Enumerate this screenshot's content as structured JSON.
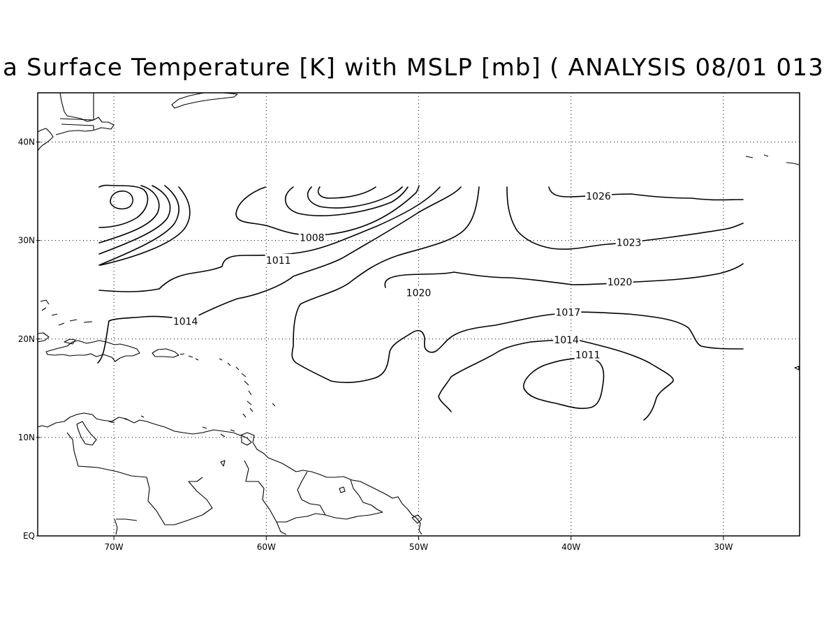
{
  "title": "a Surface Temperature [K] with MSLP [mb] ( ANALYSIS 08/01 013",
  "map": {
    "lon_range": [
      -75,
      -25
    ],
    "lat_range": [
      0,
      45
    ],
    "lat_ticks": [
      {
        "value": 0,
        "label": "EQ"
      },
      {
        "value": 10,
        "label": "10N"
      },
      {
        "value": 20,
        "label": "20N"
      },
      {
        "value": 30,
        "label": "30N"
      },
      {
        "value": 40,
        "label": "40N"
      }
    ],
    "lon_ticks": [
      {
        "value": -70,
        "label": "70W"
      },
      {
        "value": -60,
        "label": "60W"
      },
      {
        "value": -50,
        "label": "50W"
      },
      {
        "value": -40,
        "label": "40W"
      },
      {
        "value": -30,
        "label": "30W"
      }
    ],
    "grid": true
  },
  "contour_labels": [
    {
      "text": "1026",
      "lon": -38.2,
      "lat": 34.5
    },
    {
      "text": "1023",
      "lon": -36.2,
      "lat": 29.8
    },
    {
      "text": "1020",
      "lon": -36.8,
      "lat": 25.8
    },
    {
      "text": "1020",
      "lon": -50.0,
      "lat": 24.7
    },
    {
      "text": "1017",
      "lon": -40.2,
      "lat": 22.7
    },
    {
      "text": "1014",
      "lon": -40.3,
      "lat": 19.9
    },
    {
      "text": "1011",
      "lon": -38.9,
      "lat": 18.4
    },
    {
      "text": "1008",
      "lon": -57.0,
      "lat": 30.3
    },
    {
      "text": "1011",
      "lon": -59.2,
      "lat": 28.0
    },
    {
      "text": "1014",
      "lon": -65.3,
      "lat": 21.8
    }
  ]
}
